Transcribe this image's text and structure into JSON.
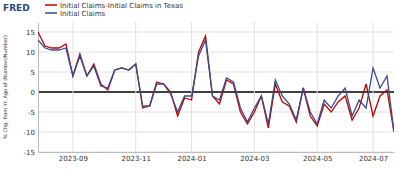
{
  "chart_data": {
    "type": "line",
    "annotations": [
      "FRED"
    ],
    "y_label": "% Chg. from Yr. Ago of (Number/Number)",
    "categories": [
      null,
      null,
      null,
      null,
      null,
      "2023-09",
      null,
      null,
      null,
      null,
      null,
      null,
      null,
      null,
      "2023-11",
      null,
      null,
      null,
      null,
      null,
      null,
      null,
      "2024-01",
      null,
      null,
      null,
      null,
      null,
      null,
      null,
      null,
      "2024-03",
      null,
      null,
      null,
      null,
      null,
      null,
      null,
      null,
      "2024-05",
      null,
      null,
      null,
      null,
      null,
      null,
      null,
      "2024-07",
      null,
      null,
      null
    ],
    "series": [
      {
        "name": "Initial Claims-Initial Claims in Texas",
        "color": "#c00000",
        "values": [
          15,
          11.5,
          11,
          11,
          12,
          4,
          9.5,
          4,
          7,
          2,
          0.5,
          5.5,
          6,
          5.5,
          7,
          -4,
          -3.5,
          2.5,
          2,
          0,
          -6,
          -1.5,
          -2,
          10,
          14,
          -1,
          -3,
          3,
          2,
          -5,
          -8,
          -5,
          -1,
          -9,
          2,
          -2.5,
          -3.5,
          -7.5,
          1,
          -6,
          -8.5,
          -3,
          -5,
          -2.5,
          -1,
          -7,
          -4,
          2,
          -6,
          -1,
          0.5,
          -10
        ]
      },
      {
        "name": "Initial Claims",
        "color": "#3a4a8c",
        "values": [
          13,
          11,
          10.5,
          10.5,
          11,
          4,
          9,
          4,
          6.5,
          1.5,
          1,
          5.5,
          6,
          5.5,
          7,
          -3.5,
          -3.5,
          2,
          2,
          -0.5,
          -5,
          -1,
          -1,
          9,
          13,
          -1,
          -2,
          3.5,
          2.5,
          -4,
          -7.5,
          -4,
          -1,
          -8,
          3,
          -1,
          -3,
          -7,
          1,
          -5,
          -8,
          -2,
          -4,
          -1,
          1,
          -6,
          -2,
          -4,
          6,
          1,
          4,
          -10
        ]
      }
    ],
    "ylim": [
      -15,
      17.5
    ],
    "yticks": [
      -15,
      -10,
      -5,
      0,
      5,
      10,
      15
    ],
    "grid": true,
    "legend": "top-left"
  }
}
